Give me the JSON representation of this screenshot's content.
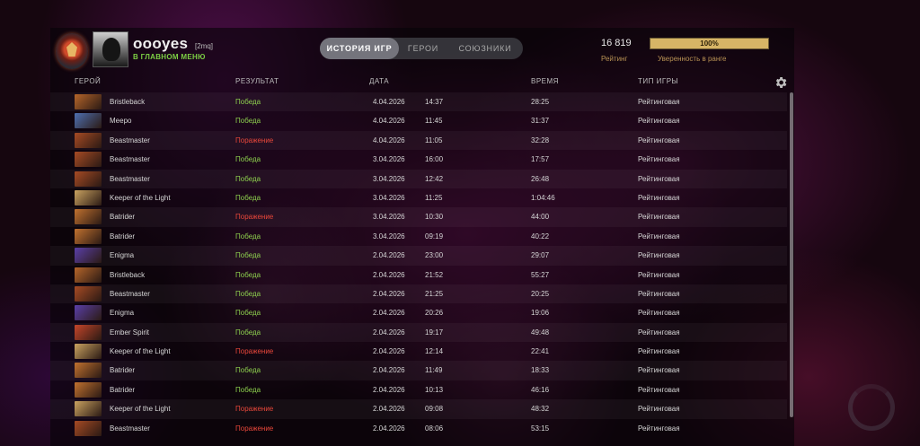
{
  "profile": {
    "name": "oooyes",
    "tag": "[2mq]",
    "status": "В ГЛАВНОМ МЕНЮ"
  },
  "tabs": [
    {
      "label": "ИСТОРИЯ ИГР",
      "active": true
    },
    {
      "label": "ГЕРОИ",
      "active": false
    },
    {
      "label": "СОЮЗНИКИ",
      "active": false
    }
  ],
  "rating": {
    "value": "16 819",
    "label": "Рейтинг"
  },
  "confidence": {
    "value": "100%",
    "fraction": 1.0,
    "label": "Уверенность в ранге"
  },
  "columns": {
    "hero": "ГЕРОЙ",
    "result": "РЕЗУЛЬТАТ",
    "date": "ДАТА",
    "duration": "ВРЕМЯ",
    "type": "ТИП ИГРЫ"
  },
  "icons": {
    "settings": "gear-icon"
  },
  "colors": {
    "win": "#8ed14e",
    "loss": "#e8473a",
    "accent": "#d7b566"
  },
  "matches": [
    {
      "hero": "Bristleback",
      "result": "Победа",
      "win": true,
      "date": "4.04.2026",
      "time": "14:37",
      "duration": "28:25",
      "type": "Рейтинговая",
      "icon_color": "#b5652a"
    },
    {
      "hero": "Meepo",
      "result": "Победа",
      "win": true,
      "date": "4.04.2026",
      "time": "11:45",
      "duration": "31:37",
      "type": "Рейтинговая",
      "icon_color": "#4e6fb0"
    },
    {
      "hero": "Beastmaster",
      "result": "Поражение",
      "win": false,
      "date": "4.04.2026",
      "time": "11:05",
      "duration": "32:28",
      "type": "Рейтинговая",
      "icon_color": "#a64a24"
    },
    {
      "hero": "Beastmaster",
      "result": "Победа",
      "win": true,
      "date": "3.04.2026",
      "time": "16:00",
      "duration": "17:57",
      "type": "Рейтинговая",
      "icon_color": "#a64a24"
    },
    {
      "hero": "Beastmaster",
      "result": "Победа",
      "win": true,
      "date": "3.04.2026",
      "time": "12:42",
      "duration": "26:48",
      "type": "Рейтинговая",
      "icon_color": "#a64a24"
    },
    {
      "hero": "Keeper of the Light",
      "result": "Победа",
      "win": true,
      "date": "3.04.2026",
      "time": "11:25",
      "duration": "1:04:46",
      "type": "Рейтинговая",
      "icon_color": "#c9a260"
    },
    {
      "hero": "Batrider",
      "result": "Поражение",
      "win": false,
      "date": "3.04.2026",
      "time": "10:30",
      "duration": "44:00",
      "type": "Рейтинговая",
      "icon_color": "#c0712f"
    },
    {
      "hero": "Batrider",
      "result": "Победа",
      "win": true,
      "date": "3.04.2026",
      "time": "09:19",
      "duration": "40:22",
      "type": "Рейтинговая",
      "icon_color": "#c0712f"
    },
    {
      "hero": "Enigma",
      "result": "Победа",
      "win": true,
      "date": "2.04.2026",
      "time": "23:00",
      "duration": "29:07",
      "type": "Рейтинговая",
      "icon_color": "#5a3fa8"
    },
    {
      "hero": "Bristleback",
      "result": "Победа",
      "win": true,
      "date": "2.04.2026",
      "time": "21:52",
      "duration": "55:27",
      "type": "Рейтинговая",
      "icon_color": "#b5652a"
    },
    {
      "hero": "Beastmaster",
      "result": "Победа",
      "win": true,
      "date": "2.04.2026",
      "time": "21:25",
      "duration": "20:25",
      "type": "Рейтинговая",
      "icon_color": "#a64a24"
    },
    {
      "hero": "Enigma",
      "result": "Победа",
      "win": true,
      "date": "2.04.2026",
      "time": "20:26",
      "duration": "19:06",
      "type": "Рейтинговая",
      "icon_color": "#5a3fa8"
    },
    {
      "hero": "Ember Spirit",
      "result": "Победа",
      "win": true,
      "date": "2.04.2026",
      "time": "19:17",
      "duration": "49:48",
      "type": "Рейтинговая",
      "icon_color": "#c4452a"
    },
    {
      "hero": "Keeper of the Light",
      "result": "Поражение",
      "win": false,
      "date": "2.04.2026",
      "time": "12:14",
      "duration": "22:41",
      "type": "Рейтинговая",
      "icon_color": "#c9a260"
    },
    {
      "hero": "Batrider",
      "result": "Победа",
      "win": true,
      "date": "2.04.2026",
      "time": "11:49",
      "duration": "18:33",
      "type": "Рейтинговая",
      "icon_color": "#c0712f"
    },
    {
      "hero": "Batrider",
      "result": "Победа",
      "win": true,
      "date": "2.04.2026",
      "time": "10:13",
      "duration": "46:16",
      "type": "Рейтинговая",
      "icon_color": "#c0712f"
    },
    {
      "hero": "Keeper of the Light",
      "result": "Поражение",
      "win": false,
      "date": "2.04.2026",
      "time": "09:08",
      "duration": "48:32",
      "type": "Рейтинговая",
      "icon_color": "#c9a260"
    },
    {
      "hero": "Beastmaster",
      "result": "Поражение",
      "win": false,
      "date": "2.04.2026",
      "time": "08:06",
      "duration": "53:15",
      "type": "Рейтинговая",
      "icon_color": "#a64a24"
    }
  ]
}
